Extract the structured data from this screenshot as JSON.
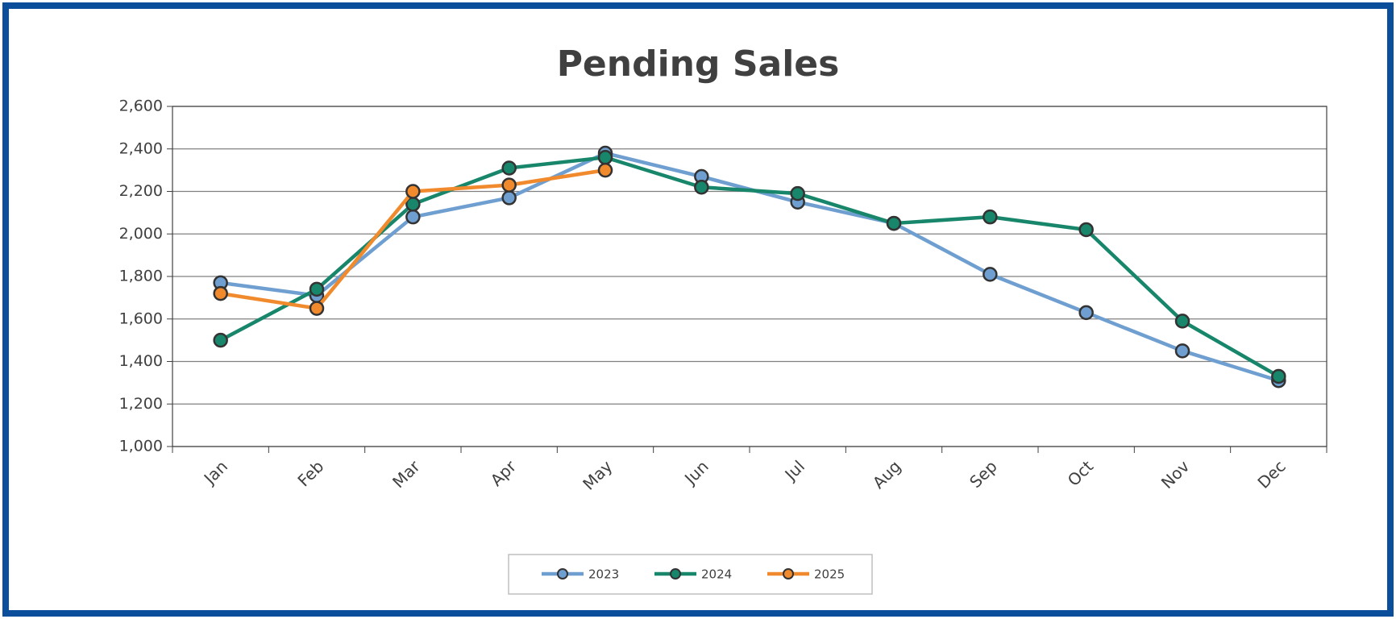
{
  "chart_data": {
    "type": "line",
    "title": "Pending Sales",
    "categories": [
      "Jan",
      "Feb",
      "Mar",
      "Apr",
      "May",
      "Jun",
      "Jul",
      "Aug",
      "Sep",
      "Oct",
      "Nov",
      "Dec"
    ],
    "series": [
      {
        "name": "2023",
        "color": "#6f9fd0",
        "values": [
          1770,
          1710,
          2080,
          2170,
          2380,
          2270,
          2150,
          2050,
          1810,
          1630,
          1450,
          1310
        ]
      },
      {
        "name": "2024",
        "color": "#17866a",
        "values": [
          1500,
          1740,
          2140,
          2310,
          2360,
          2220,
          2190,
          2050,
          2080,
          2020,
          1590,
          1330
        ]
      },
      {
        "name": "2025",
        "color": "#f08a2c",
        "values": [
          1720,
          1650,
          2200,
          2230,
          2300,
          null,
          null,
          null,
          null,
          null,
          null,
          null
        ]
      }
    ],
    "ylim": [
      1000,
      2600
    ],
    "yticks": [
      {
        "value": 1000,
        "label": "1,000"
      },
      {
        "value": 1200,
        "label": "1,200"
      },
      {
        "value": 1400,
        "label": "1,400"
      },
      {
        "value": 1600,
        "label": "1,600"
      },
      {
        "value": 1800,
        "label": "1,800"
      },
      {
        "value": 2000,
        "label": "2,000"
      },
      {
        "value": 2200,
        "label": "2,200"
      },
      {
        "value": 2400,
        "label": "2,400"
      },
      {
        "value": 2600,
        "label": "2,600"
      }
    ],
    "grid": true,
    "legend": "bottom"
  }
}
